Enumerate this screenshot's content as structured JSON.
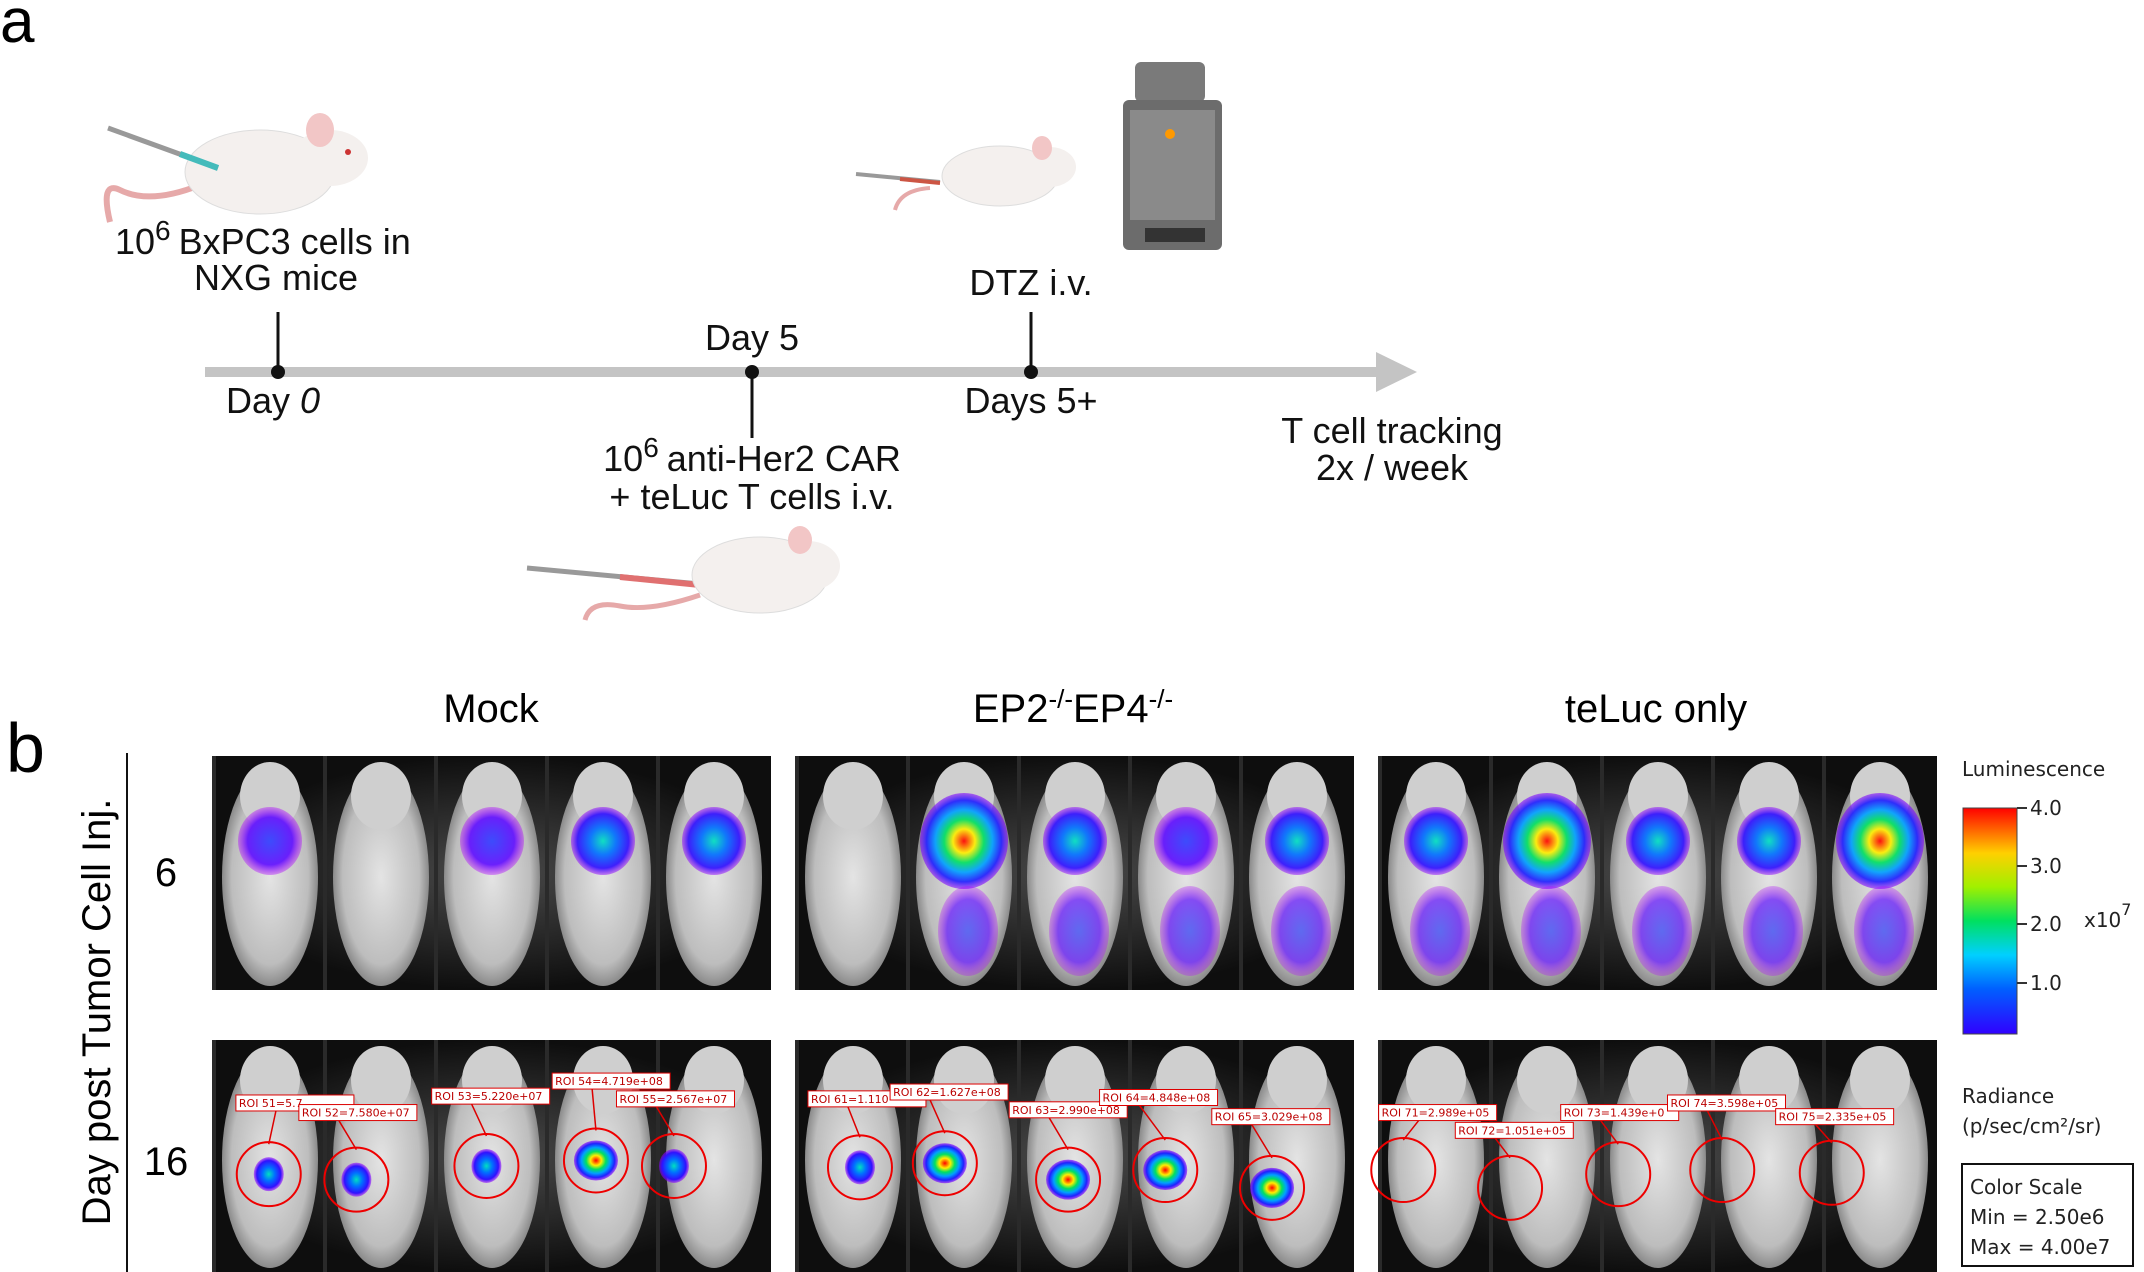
{
  "panel_a": {
    "label": "a",
    "injection": {
      "base": "10",
      "exponent": "6",
      "line1": "BxPC3 cells in",
      "line2": "NXG mice"
    },
    "day0": {
      "text": "Day ",
      "italic": "0"
    },
    "day5": "Day 5",
    "car": {
      "base": "10",
      "exponent": "6",
      "line1": "anti-Her2 CAR",
      "line2": "+ teLuc T cells i.v."
    },
    "dtz": "DTZ i.v.",
    "days5plus": "Days 5+",
    "tracking": [
      "T cell tracking",
      "2x / week"
    ]
  },
  "panel_b": {
    "label": "b",
    "row_axis_label": "Day post Tumor Cell Inj.",
    "rows": [
      "6",
      "16"
    ],
    "columns": {
      "mock": "Mock",
      "ep": {
        "base1": "EP2",
        "sup1": "-/-",
        "base2": "EP4",
        "sup2": "-/-"
      },
      "teluc": "teLuc only"
    },
    "roi_labels": [
      [
        "ROI 51=5.7",
        "ROI 52=7.580e+07",
        "ROI 53=5.220e+07",
        "ROI 54=4.719e+08",
        "ROI 55=2.567e+07"
      ],
      [
        "ROI 61=1.110",
        "ROI 62=1.627e+08",
        "ROI 63=2.990e+08",
        "ROI 64=4.848e+08",
        "ROI 65=3.029e+08"
      ],
      [
        "ROI 71=2.989e+05",
        "ROI 72=1.051e+05",
        "ROI 73=1.439e+0",
        "ROI 74=3.598e+05",
        "ROI 75=2.335e+05"
      ]
    ],
    "color_scale": {
      "title": "Luminescence",
      "ticks": [
        "4.0",
        "3.0",
        "2.0",
        "1.0"
      ],
      "multiplier": {
        "base": "x10",
        "exponent": "7"
      },
      "radiance": "Radiance",
      "units": "(p/sec/cm²/sr)",
      "box": [
        "Color Scale",
        "Min = 2.50e6",
        "Max = 4.00e7"
      ]
    }
  }
}
